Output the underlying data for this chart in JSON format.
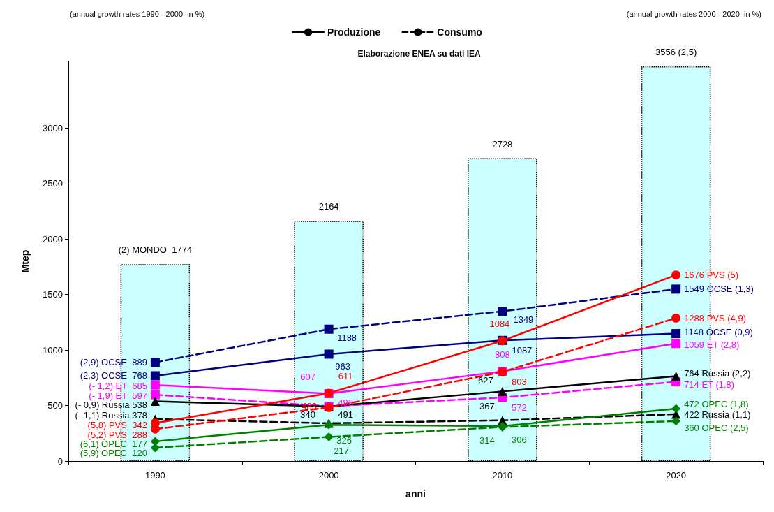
{
  "chart_data": {
    "type": "line",
    "title": "Elaborazione ENEA su dati IEA",
    "xlabel": "anni",
    "ylabel": "Mtep",
    "annotations": [
      "(annual growth rates 1990 - 2000  in %)",
      "(annual growth rates 2000 - 2020  in %)"
    ],
    "categories": [
      "1990",
      "2000",
      "2010",
      "2020"
    ],
    "ylim": [
      0,
      3600
    ],
    "yticks": [
      0,
      500,
      1000,
      1500,
      2000,
      2500,
      3000
    ],
    "grid": false,
    "legend": "top",
    "series": [
      {
        "type": "bar",
        "color": "#ccffff",
        "line_style": "dotted",
        "values": [
          1774,
          2164,
          2728,
          3556
        ],
        "value_labels": [
          "(2) MONDO  1774",
          "2164",
          "2728",
          "3556 (2,5)"
        ]
      },
      {
        "name": "Produzione",
        "color": "#000000",
        "line_style": "solid",
        "marker": "none",
        "values": [
          null,
          null,
          null,
          null
        ]
      },
      {
        "name": "Consumo",
        "color": "#000000",
        "line_style": "dashed",
        "marker": "none",
        "values": [
          null,
          null,
          null,
          null
        ]
      },
      {
        "color": "#000080",
        "line_style": "dashed",
        "marker": "square",
        "values": [
          889,
          1188,
          1349,
          1549
        ],
        "value_labels": [
          "(2,9) OCSE  889",
          "1188",
          "1349",
          "1549 OCSE (1,3)"
        ]
      },
      {
        "color": "#000080",
        "line_style": "solid",
        "marker": "square",
        "values": [
          768,
          963,
          1087,
          1148
        ],
        "value_labels": [
          "(2,3) OCSE  768",
          "963",
          "1087",
          "1148 OCSE (0,9)"
        ]
      },
      {
        "color": "#ff00ff",
        "line_style": "solid",
        "marker": "square",
        "values": [
          685,
          607,
          808,
          1059
        ],
        "value_labels": [
          "(- 1,2) ET  685",
          "607",
          "808",
          "1059 ET (2,8)"
        ]
      },
      {
        "color": "#ff00ff",
        "line_style": "dashed",
        "marker": "square",
        "values": [
          597,
          493,
          572,
          714
        ],
        "value_labels": [
          "(- 1,9) ET  597",
          "493",
          "572",
          "714 ET (1,8)"
        ]
      },
      {
        "color": "#000000",
        "line_style": "solid",
        "marker": "triangle",
        "values": [
          538,
          491,
          627,
          764
        ],
        "value_labels": [
          "(- 0,9) Russia 538",
          "491",
          "627",
          "764 Russia (2,2)"
        ]
      },
      {
        "color": "#000000",
        "line_style": "dashed",
        "marker": "triangle",
        "values": [
          378,
          340,
          367,
          422
        ],
        "value_labels": [
          "(- 1,1) Russia 378",
          "340",
          "367",
          "422 Russia (1,1)"
        ]
      },
      {
        "color": "#ff0000",
        "line_style": "solid",
        "marker": "circle",
        "values": [
          342,
          611,
          1084,
          1676
        ],
        "value_labels": [
          "(5,8) PVS  342",
          "611",
          "1084",
          "1676 PVS (5)"
        ]
      },
      {
        "color": "#ff0000",
        "line_style": "dashed",
        "marker": "circle",
        "values": [
          288,
          483,
          803,
          1288
        ],
        "value_labels": [
          "(5,2) PVS  288",
          "483",
          "803",
          "1288 PVS (4,9)"
        ]
      },
      {
        "color": "#008000",
        "line_style": "solid",
        "marker": "diamond",
        "values": [
          177,
          326,
          314,
          472
        ],
        "value_labels": [
          "(6,1) OPEC  177",
          "326",
          "314",
          "472 OPEC (1,8)"
        ]
      },
      {
        "color": "#008000",
        "line_style": "dashed",
        "marker": "diamond",
        "values": [
          120,
          217,
          306,
          360
        ],
        "value_labels": [
          "(5,9) OPEC  120",
          "217",
          "306",
          "360 OPEC (2,5)"
        ]
      }
    ]
  }
}
